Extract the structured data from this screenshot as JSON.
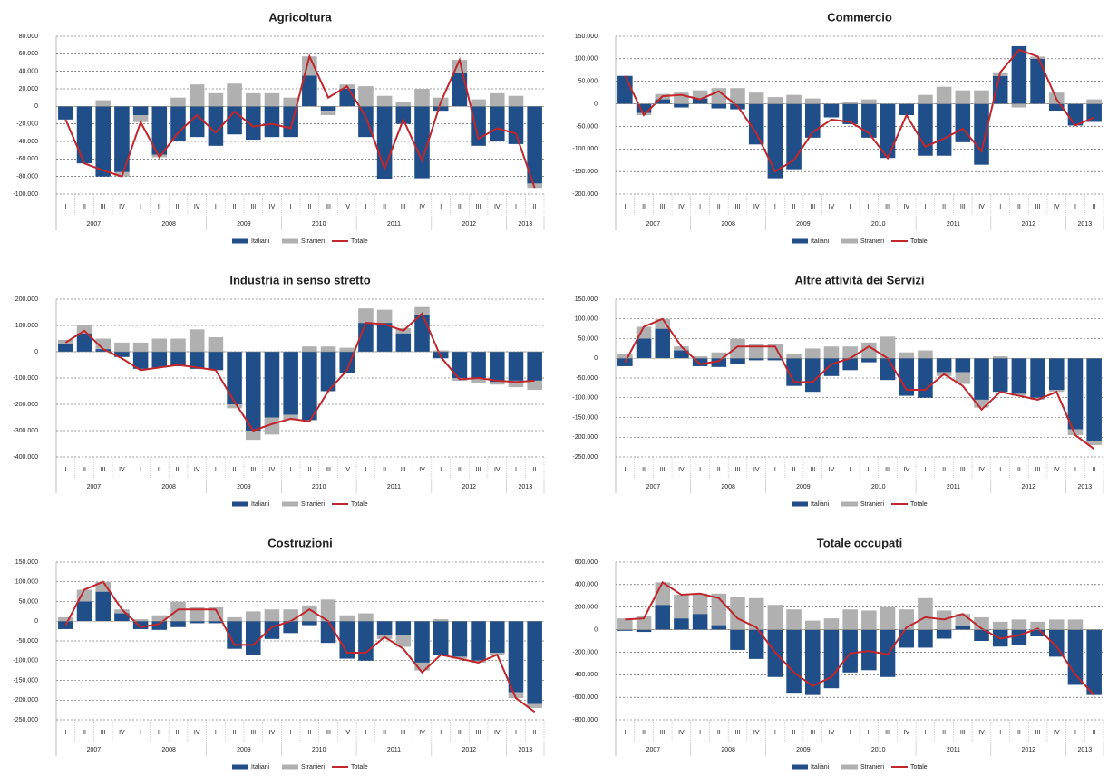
{
  "chart_data": [
    {
      "type": "combo",
      "title": "Agricoltura",
      "categories": [
        "I",
        "II",
        "III",
        "IV",
        "I",
        "II",
        "III",
        "IV",
        "I",
        "II",
        "III",
        "IV",
        "I",
        "II",
        "III",
        "IV",
        "I",
        "II",
        "III",
        "IV",
        "I",
        "II",
        "III",
        "IV",
        "I",
        "II"
      ],
      "years": [
        "2007",
        "2008",
        "2009",
        "2010",
        "2011",
        "2012",
        "2013"
      ],
      "ylim": [
        -100000,
        80000
      ],
      "yticks": [
        {
          "value": -100000,
          "label": "-100.000"
        },
        {
          "value": -80000,
          "label": "-80.000"
        },
        {
          "value": -60000,
          "label": "-60.000"
        },
        {
          "value": -40000,
          "label": "-40.000"
        },
        {
          "value": -20000,
          "label": "-20.000"
        },
        0,
        {
          "value": 20000,
          "label": "20.000"
        },
        {
          "value": 40000,
          "label": "40.000"
        },
        {
          "value": 60000,
          "label": "60.000"
        },
        {
          "value": 80000,
          "label": "80.000"
        }
      ],
      "grid": true,
      "series": [
        {
          "name": "Italiani",
          "color": "#1f4e89",
          "kind": "bar",
          "values": [
            -15000,
            -65000,
            -80000,
            -75000,
            -10000,
            -55000,
            -40000,
            -35000,
            -45000,
            -32000,
            -38000,
            -35000,
            -35000,
            35000,
            -5000,
            20000,
            -35000,
            -83000,
            -20000,
            -82000,
            -5000,
            38000,
            -45000,
            -40000,
            -43000,
            -88000
          ]
        },
        {
          "name": "Stranieri",
          "color": "#b0b0b0",
          "kind": "bar",
          "values": [
            0,
            0,
            7000,
            -5000,
            -8000,
            -3000,
            10000,
            25000,
            15000,
            26000,
            15000,
            15000,
            10000,
            22000,
            -5000,
            5000,
            23000,
            12000,
            5000,
            20000,
            10000,
            15000,
            8000,
            15000,
            12000,
            -5000
          ]
        },
        {
          "name": "Totale",
          "color": "#c0262c",
          "kind": "line",
          "values": [
            -15000,
            -65000,
            -73000,
            -80000,
            -18000,
            -58000,
            -30000,
            -10000,
            -30000,
            -6000,
            -23000,
            -20000,
            -25000,
            57000,
            10000,
            23000,
            -12000,
            -71000,
            -15000,
            -62000,
            5000,
            53000,
            -37000,
            -25000,
            -31000,
            -93000
          ]
        }
      ]
    },
    {
      "type": "combo",
      "title": "Commercio",
      "categories": [
        "I",
        "II",
        "III",
        "IV",
        "I",
        "II",
        "III",
        "IV",
        "I",
        "II",
        "III",
        "IV",
        "I",
        "II",
        "III",
        "IV",
        "I",
        "II",
        "III",
        "IV",
        "I",
        "II",
        "III",
        "IV",
        "I",
        "II"
      ],
      "years": [
        "2007",
        "2008",
        "2009",
        "2010",
        "2011",
        "2012",
        "2013"
      ],
      "ylim": [
        -200000,
        150000
      ],
      "yticks": [
        {
          "value": -200000,
          "label": "-200.000"
        },
        {
          "value": -150000,
          "label": "-150.000"
        },
        {
          "value": -100000,
          "label": "-100.000"
        },
        {
          "value": -50000,
          "label": "-50.000"
        },
        0,
        {
          "value": 50000,
          "label": "50.000"
        },
        {
          "value": 100000,
          "label": "100.000"
        },
        {
          "value": 150000,
          "label": "150.000"
        }
      ],
      "grid": true,
      "series": [
        {
          "name": "Italiani",
          "color": "#1f4e89",
          "kind": "bar",
          "values": [
            62000,
            -20000,
            10000,
            -8000,
            12000,
            -10000,
            -12000,
            -90000,
            -165000,
            -145000,
            -75000,
            -30000,
            -45000,
            -75000,
            -120000,
            -25000,
            -115000,
            -115000,
            -85000,
            -135000,
            62000,
            128000,
            100000,
            -15000,
            -48000,
            -40000
          ]
        },
        {
          "name": "Stranieri",
          "color": "#b0b0b0",
          "kind": "bar",
          "values": [
            0,
            -5000,
            12000,
            25000,
            18000,
            35000,
            35000,
            25000,
            15000,
            20000,
            12000,
            0,
            5000,
            10000,
            0,
            0,
            20000,
            38000,
            30000,
            30000,
            8000,
            -8000,
            5000,
            25000,
            0,
            10000
          ]
        },
        {
          "name": "Totale",
          "color": "#c0262c",
          "kind": "line",
          "values": [
            62000,
            -25000,
            17000,
            20000,
            10000,
            28000,
            -5000,
            -65000,
            -150000,
            -125000,
            -63000,
            -35000,
            -40000,
            -65000,
            -120000,
            -25000,
            -95000,
            -77000,
            -55000,
            -105000,
            70000,
            120000,
            105000,
            10000,
            -48000,
            -30000
          ]
        }
      ]
    },
    {
      "type": "combo",
      "title": "Industria in senso stretto",
      "categories": [
        "I",
        "II",
        "III",
        "IV",
        "I",
        "II",
        "III",
        "IV",
        "I",
        "II",
        "III",
        "IV",
        "I",
        "II",
        "III",
        "IV",
        "I",
        "II",
        "III",
        "IV",
        "I",
        "II",
        "III",
        "IV",
        "I",
        "II"
      ],
      "years": [
        "2007",
        "2008",
        "2009",
        "2010",
        "2011",
        "2012",
        "2013"
      ],
      "ylim": [
        -400000,
        200000
      ],
      "yticks": [
        {
          "value": -400000,
          "label": "-400.000"
        },
        {
          "value": -300000,
          "label": "-300.000"
        },
        {
          "value": -200000,
          "label": "-200.000"
        },
        {
          "value": -100000,
          "label": "-100.000"
        },
        0,
        {
          "value": 100000,
          "label": "100.000"
        },
        {
          "value": 200000,
          "label": "200.000"
        }
      ],
      "grid": true,
      "series": [
        {
          "name": "Italiani",
          "color": "#1f4e89",
          "kind": "bar",
          "values": [
            30000,
            70000,
            10000,
            -20000,
            -65000,
            -60000,
            -55000,
            -65000,
            -70000,
            -200000,
            -300000,
            -250000,
            -240000,
            -260000,
            -150000,
            -80000,
            110000,
            110000,
            70000,
            140000,
            -25000,
            -100000,
            -100000,
            -115000,
            -110000,
            -110000
          ]
        },
        {
          "name": "Stranieri",
          "color": "#b0b0b0",
          "kind": "bar",
          "values": [
            15000,
            30000,
            40000,
            35000,
            35000,
            50000,
            50000,
            85000,
            55000,
            -15000,
            -35000,
            -65000,
            -20000,
            20000,
            20000,
            15000,
            55000,
            50000,
            20000,
            30000,
            5000,
            -10000,
            -20000,
            -10000,
            -25000,
            -35000
          ]
        },
        {
          "name": "Totale",
          "color": "#c0262c",
          "kind": "line",
          "values": [
            35000,
            80000,
            10000,
            -25000,
            -70000,
            -60000,
            -50000,
            -60000,
            -70000,
            -190000,
            -300000,
            -275000,
            -255000,
            -265000,
            -150000,
            -70000,
            110000,
            105000,
            80000,
            145000,
            -20000,
            -105000,
            -100000,
            -110000,
            -115000,
            -110000
          ]
        }
      ]
    },
    {
      "type": "combo",
      "title": "Altre attività dei Servizi",
      "categories": [
        "I",
        "II",
        "III",
        "IV",
        "I",
        "II",
        "III",
        "IV",
        "I",
        "II",
        "III",
        "IV",
        "I",
        "II",
        "III",
        "IV",
        "I",
        "II",
        "III",
        "IV",
        "I",
        "II",
        "III",
        "IV",
        "I",
        "II"
      ],
      "years": [
        "2007",
        "2008",
        "2009",
        "2010",
        "2011",
        "2012",
        "2013"
      ],
      "ylim": [
        -250000,
        150000
      ],
      "yticks": [
        {
          "value": -250000,
          "label": "-250.000"
        },
        {
          "value": -200000,
          "label": "-200.000"
        },
        {
          "value": -150000,
          "label": "-150.000"
        },
        {
          "value": -100000,
          "label": "-100.000"
        },
        {
          "value": -50000,
          "label": "-50.000"
        },
        0,
        {
          "value": 50000,
          "label": "50.000"
        },
        {
          "value": 100000,
          "label": "100.000"
        },
        {
          "value": 150000,
          "label": "150.000"
        }
      ],
      "grid": true,
      "series": [
        {
          "name": "Italiani",
          "color": "#1f4e89",
          "kind": "bar",
          "values": [
            -20000,
            50000,
            75000,
            20000,
            -20000,
            -22000,
            -15000,
            -5000,
            -5000,
            -70000,
            -85000,
            -45000,
            -30000,
            -10000,
            -55000,
            -95000,
            -100000,
            -35000,
            -35000,
            -105000,
            -85000,
            -90000,
            -100000,
            -80000,
            -180000,
            -210000
          ]
        },
        {
          "name": "Stranieri",
          "color": "#b0b0b0",
          "kind": "bar",
          "values": [
            10000,
            30000,
            25000,
            10000,
            5000,
            15000,
            50000,
            35000,
            35000,
            10000,
            25000,
            30000,
            30000,
            40000,
            55000,
            15000,
            20000,
            -10000,
            -30000,
            -20000,
            5000,
            -5000,
            -5000,
            -5000,
            -15000,
            -10000
          ]
        },
        {
          "name": "Totale",
          "color": "#c0262c",
          "kind": "line",
          "values": [
            -10000,
            80000,
            100000,
            30000,
            -15000,
            -7000,
            30000,
            30000,
            30000,
            -60000,
            -60000,
            -15000,
            0,
            30000,
            0,
            -80000,
            -80000,
            -40000,
            -70000,
            -130000,
            -85000,
            -95000,
            -105000,
            -85000,
            -195000,
            -230000
          ]
        }
      ]
    },
    {
      "type": "combo",
      "title": "Costruzioni",
      "categories": [
        "I",
        "II",
        "III",
        "IV",
        "I",
        "II",
        "III",
        "IV",
        "I",
        "II",
        "III",
        "IV",
        "I",
        "II",
        "III",
        "IV",
        "I",
        "II",
        "III",
        "IV",
        "I",
        "II",
        "III",
        "IV",
        "I",
        "II"
      ],
      "years": [
        "2007",
        "2008",
        "2009",
        "2010",
        "2011",
        "2012",
        "2013"
      ],
      "ylim": [
        -250000,
        150000
      ],
      "yticks": [
        {
          "value": -250000,
          "label": "-250.000"
        },
        {
          "value": -200000,
          "label": "-200.000"
        },
        {
          "value": -150000,
          "label": "-150.000"
        },
        {
          "value": -100000,
          "label": "-100.000"
        },
        {
          "value": -50000,
          "label": "-50.000"
        },
        0,
        {
          "value": 50000,
          "label": "50.000"
        },
        {
          "value": 100000,
          "label": "100.000"
        },
        {
          "value": 150000,
          "label": "150.000"
        }
      ],
      "grid": true,
      "series": [
        {
          "name": "Italiani",
          "color": "#1f4e89",
          "kind": "bar",
          "values": [
            -20000,
            50000,
            75000,
            20000,
            -20000,
            -22000,
            -15000,
            -5000,
            -5000,
            -70000,
            -85000,
            -45000,
            -30000,
            -10000,
            -55000,
            -95000,
            -100000,
            -35000,
            -35000,
            -105000,
            -85000,
            -90000,
            -100000,
            -80000,
            -180000,
            -210000
          ]
        },
        {
          "name": "Stranieri",
          "color": "#b0b0b0",
          "kind": "bar",
          "values": [
            10000,
            30000,
            25000,
            10000,
            5000,
            15000,
            50000,
            35000,
            35000,
            10000,
            25000,
            30000,
            30000,
            40000,
            55000,
            15000,
            20000,
            -10000,
            -30000,
            -20000,
            5000,
            -5000,
            -5000,
            -5000,
            -15000,
            -10000
          ]
        },
        {
          "name": "Totale",
          "color": "#c0262c",
          "kind": "line",
          "values": [
            -10000,
            80000,
            100000,
            30000,
            -15000,
            -7000,
            30000,
            30000,
            30000,
            -60000,
            -60000,
            -15000,
            0,
            30000,
            0,
            -80000,
            -80000,
            -40000,
            -70000,
            -130000,
            -85000,
            -95000,
            -105000,
            -85000,
            -195000,
            -230000
          ]
        }
      ]
    },
    {
      "type": "combo",
      "title": "Totale occupati",
      "categories": [
        "I",
        "II",
        "III",
        "IV",
        "I",
        "II",
        "III",
        "IV",
        "I",
        "II",
        "III",
        "IV",
        "I",
        "II",
        "III",
        "IV",
        "I",
        "II",
        "III",
        "IV",
        "I",
        "II",
        "III",
        "IV",
        "I",
        "II"
      ],
      "years": [
        "2007",
        "2008",
        "2009",
        "2010",
        "2011",
        "2012",
        "2013"
      ],
      "ylim": [
        -800000,
        600000
      ],
      "yticks": [
        {
          "value": -800000,
          "label": "-800.000"
        },
        {
          "value": -600000,
          "label": "-600.000"
        },
        {
          "value": -400000,
          "label": "-400.000"
        },
        {
          "value": -200000,
          "label": "-200.000"
        },
        0,
        {
          "value": 200000,
          "label": "200.000"
        },
        {
          "value": 400000,
          "label": "400.000"
        },
        {
          "value": 600000,
          "label": "600.000"
        }
      ],
      "grid": true,
      "series": [
        {
          "name": "Italiani",
          "color": "#1f4e89",
          "kind": "bar",
          "values": [
            -10000,
            -20000,
            220000,
            100000,
            140000,
            40000,
            -180000,
            -260000,
            -420000,
            -560000,
            -580000,
            -520000,
            -380000,
            -360000,
            -420000,
            -160000,
            -160000,
            -80000,
            30000,
            -100000,
            -150000,
            -140000,
            -60000,
            -240000,
            -490000,
            -580000
          ]
        },
        {
          "name": "Stranieri",
          "color": "#b0b0b0",
          "kind": "bar",
          "values": [
            100000,
            120000,
            200000,
            210000,
            180000,
            280000,
            290000,
            280000,
            220000,
            180000,
            80000,
            100000,
            180000,
            170000,
            200000,
            180000,
            280000,
            170000,
            110000,
            110000,
            70000,
            90000,
            70000,
            90000,
            90000,
            0
          ]
        },
        {
          "name": "Totale",
          "color": "#c0262c",
          "kind": "line",
          "values": [
            90000,
            100000,
            420000,
            310000,
            320000,
            280000,
            100000,
            20000,
            -200000,
            -380000,
            -500000,
            -420000,
            -210000,
            -190000,
            -220000,
            20000,
            110000,
            90000,
            140000,
            10000,
            -80000,
            -50000,
            10000,
            -150000,
            -400000,
            -580000
          ]
        }
      ]
    }
  ]
}
